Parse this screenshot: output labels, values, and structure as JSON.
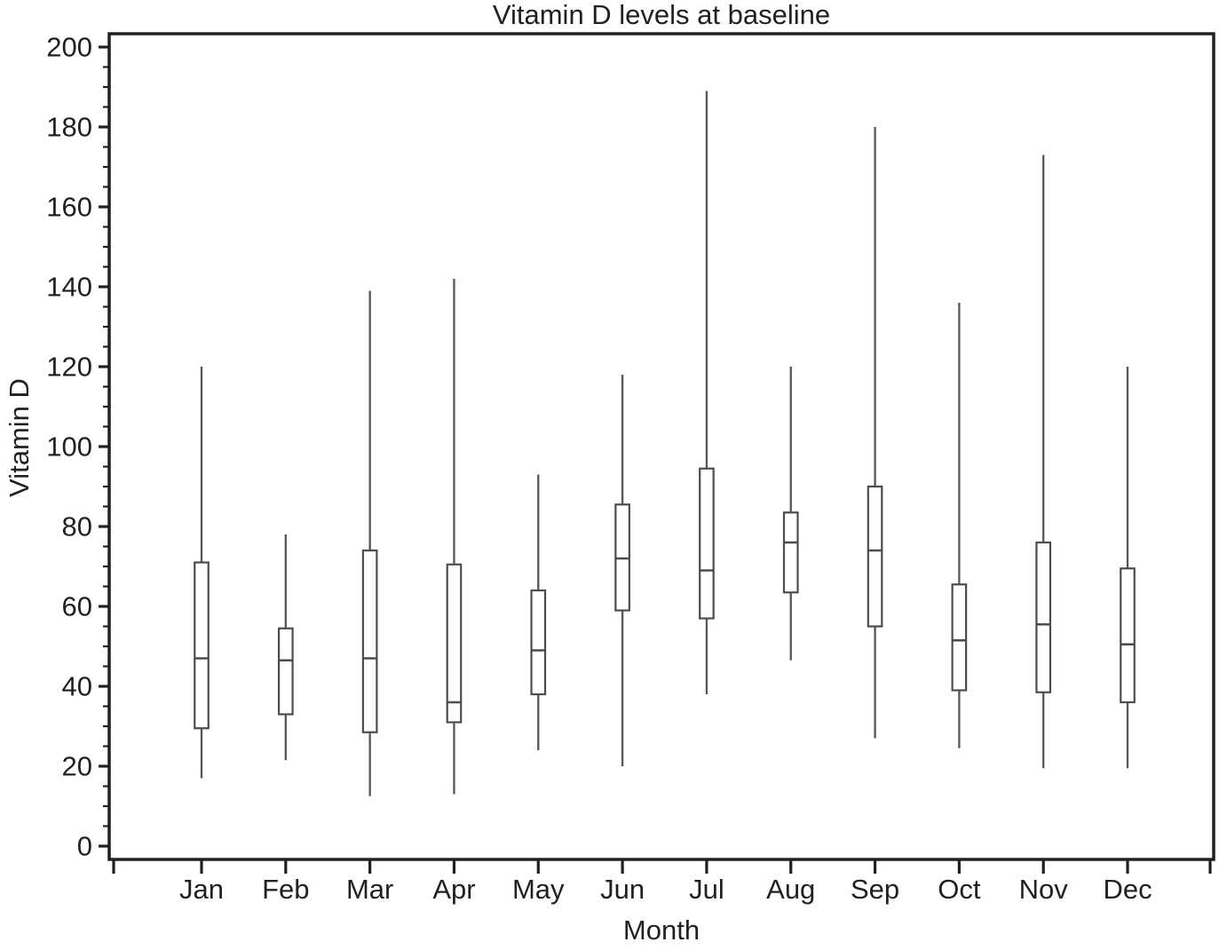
{
  "chart_data": {
    "type": "boxplot",
    "title": "Vitamin D levels at baseline",
    "xlabel": "Month",
    "ylabel": "Vitamin D",
    "ylim": [
      0,
      200
    ],
    "y_major_tick_step": 20,
    "y_minor_tick_step": 5,
    "grid": "off",
    "legend": "none",
    "whisker_caps": false,
    "categories": [
      "Jan",
      "Feb",
      "Mar",
      "Apr",
      "May",
      "Jun",
      "Jul",
      "Aug",
      "Sep",
      "Oct",
      "Nov",
      "Dec"
    ],
    "boxes": [
      {
        "month": "Jan",
        "whisker_low": 17,
        "q1": 29.5,
        "median": 47,
        "q3": 71,
        "whisker_high": 120
      },
      {
        "month": "Feb",
        "whisker_low": 21.5,
        "q1": 33,
        "median": 46.5,
        "q3": 54.5,
        "whisker_high": 78
      },
      {
        "month": "Mar",
        "whisker_low": 12.5,
        "q1": 28.5,
        "median": 47,
        "q3": 74,
        "whisker_high": 139
      },
      {
        "month": "Apr",
        "whisker_low": 13,
        "q1": 31,
        "median": 36,
        "q3": 70.5,
        "whisker_high": 142
      },
      {
        "month": "May",
        "whisker_low": 24,
        "q1": 38,
        "median": 49,
        "q3": 64,
        "whisker_high": 93
      },
      {
        "month": "Jun",
        "whisker_low": 20,
        "q1": 59,
        "median": 72,
        "q3": 85.5,
        "whisker_high": 118
      },
      {
        "month": "Jul",
        "whisker_low": 38,
        "q1": 57,
        "median": 69,
        "q3": 94.5,
        "whisker_high": 189
      },
      {
        "month": "Aug",
        "whisker_low": 46.5,
        "q1": 63.5,
        "median": 76,
        "q3": 83.5,
        "whisker_high": 120
      },
      {
        "month": "Sep",
        "whisker_low": 27,
        "q1": 55,
        "median": 74,
        "q3": 90,
        "whisker_high": 180
      },
      {
        "month": "Oct",
        "whisker_low": 24.5,
        "q1": 39,
        "median": 51.5,
        "q3": 65.5,
        "whisker_high": 136
      },
      {
        "month": "Nov",
        "whisker_low": 19.5,
        "q1": 38.5,
        "median": 55.5,
        "q3": 76,
        "whisker_high": 173
      },
      {
        "month": "Dec",
        "whisker_low": 19.5,
        "q1": 36,
        "median": 50.5,
        "q3": 69.5,
        "whisker_high": 120
      }
    ],
    "colors": {
      "axis_and_text": "#231f20",
      "box_stroke": "#4c4c50",
      "whisker_stroke": "#55555a",
      "box_fill": "#ffffff",
      "background": "#ffffff"
    }
  }
}
